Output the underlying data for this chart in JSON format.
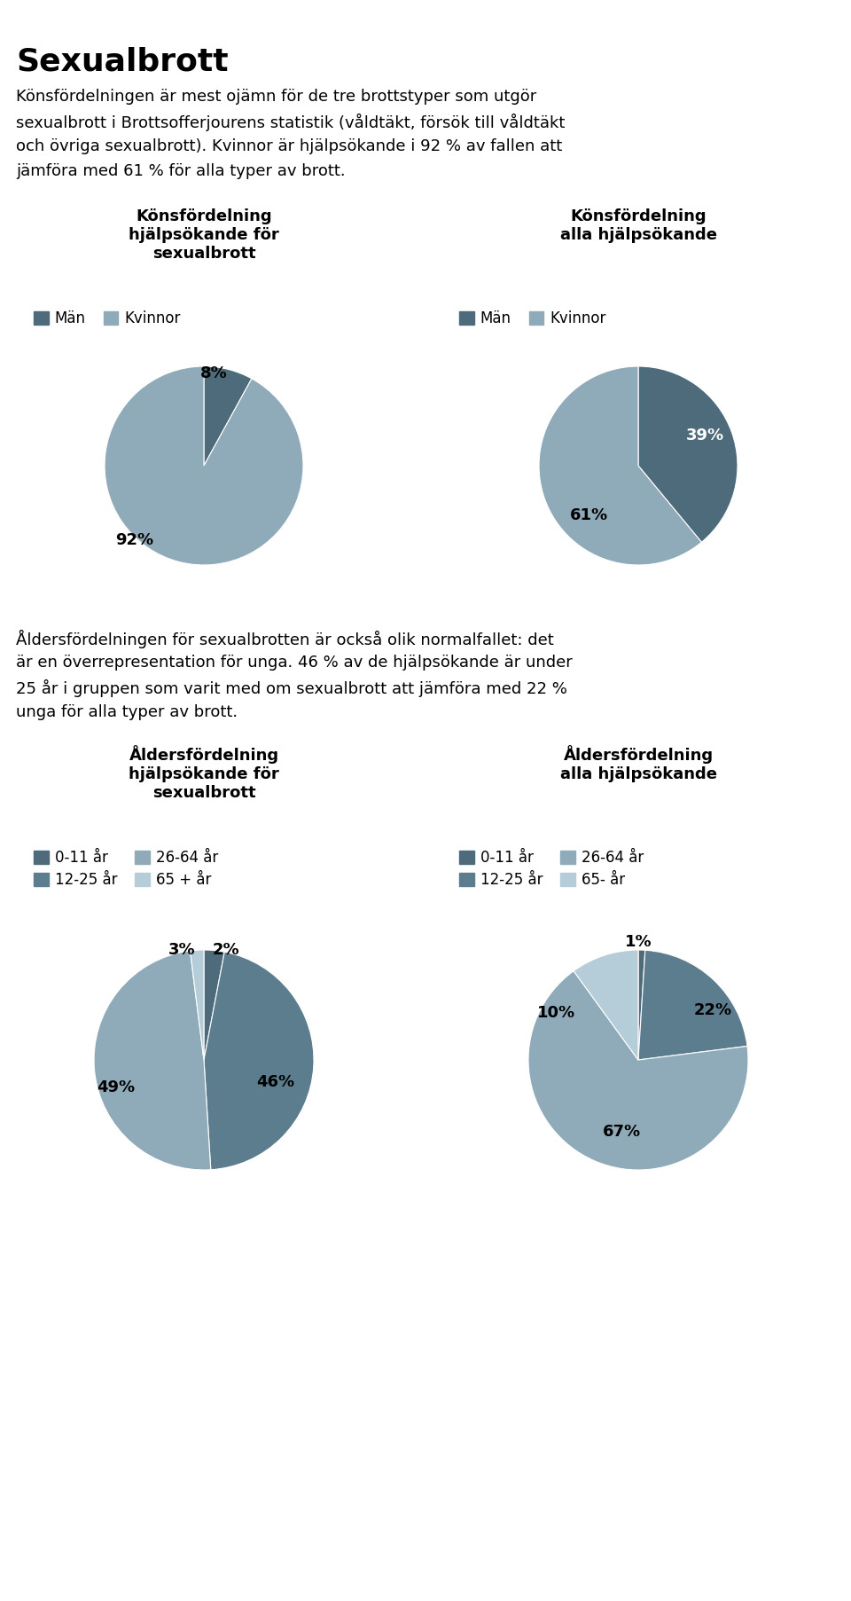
{
  "title": "Sexualbrott",
  "para1_lines": [
    "Könsfördelningen är mest ojämn för de tre brottstyper som utgör",
    "sexualbrott i Brottsofferjourens statistik (våldtäkt, försök till våldtäkt",
    "och övriga sexualbrott). Kvinnor är hjälpsökande i 92 % av fallen att",
    "jämföra med 61 % för alla typer av brott."
  ],
  "pie1_title": "Könsfördelning\nhjälpsökande för\nsexualbrott",
  "pie1_values": [
    8,
    92
  ],
  "pie1_labels": [
    "8%",
    "92%"
  ],
  "pie1_colors": [
    "#4d6b7a",
    "#8faab8"
  ],
  "pie2_title": "Könsfördelning\nalla hjälpsökande",
  "pie2_values": [
    39,
    61
  ],
  "pie2_labels": [
    "39%",
    "61%"
  ],
  "pie2_colors": [
    "#4d6b7a",
    "#8faab8"
  ],
  "para2_lines": [
    "Åldersfördelningen för sexualbrotten är också olik normalfallet: det",
    "är en överrepresentation för unga. 46 % av de hjälpsökande är under",
    "25 år i gruppen som varit med om sexualbrott att jämföra med 22 %",
    "unga för alla typer av brott."
  ],
  "pie3_title": "Åldersfördelning\nhjälpsökande för\nsexualbrott",
  "pie3_values": [
    3,
    46,
    49,
    2
  ],
  "pie3_labels": [
    "3%",
    "46%",
    "49%",
    "2%"
  ],
  "pie3_colors": [
    "#4d6b7a",
    "#5c7d8e",
    "#8faab8",
    "#b5cdd8"
  ],
  "pie3_legend": [
    "0-11 år",
    "12-25 år",
    "26-64 år",
    "65 + år"
  ],
  "pie4_title": "Åldersfördelning\nalla hjälpsökande",
  "pie4_values": [
    1,
    22,
    67,
    10
  ],
  "pie4_labels": [
    "1%",
    "22%",
    "67%",
    "10%"
  ],
  "pie4_colors": [
    "#4d6b7a",
    "#5c7d8e",
    "#8faab8",
    "#b5cdd8"
  ],
  "pie4_legend": [
    "0-11 år",
    "12-25 år",
    "26-64 år",
    "65- år"
  ],
  "bg_color": "#ffffff",
  "text_color": "#000000",
  "man_color": "#4d6b7a",
  "kvinna_color": "#8faab8"
}
